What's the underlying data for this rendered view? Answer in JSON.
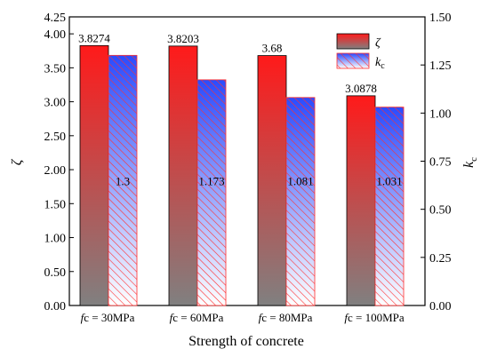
{
  "chart_data": {
    "type": "bar",
    "categories": [
      {
        "italic": "f",
        "rest": "c = 30MPa"
      },
      {
        "italic": "f",
        "rest": "c = 60MPa"
      },
      {
        "italic": "f",
        "rest": "c = 80MPa"
      },
      {
        "italic": "f",
        "rest": "c = 100MPa"
      }
    ],
    "xlabel": "Strength of concrete",
    "series": [
      {
        "name": "ζ",
        "axis": "left",
        "values": [
          3.8274,
          3.8203,
          3.68,
          3.0878
        ],
        "labels": [
          "3.8274",
          "3.8203",
          "3.68",
          "3.0878"
        ],
        "fill": "gradient-red-gray"
      },
      {
        "name": "k",
        "name_sub": "c",
        "axis": "right",
        "values": [
          1.3,
          1.173,
          1.081,
          1.031
        ],
        "labels": [
          "1.3",
          "1.173",
          "1.081",
          "1.031"
        ],
        "fill": "hatch-blue-red"
      }
    ],
    "left_axis": {
      "label": "ζ",
      "ylim": [
        0,
        4.25
      ],
      "ticks": [
        "0.00",
        "0.50",
        "1.00",
        "1.50",
        "2.00",
        "2.50",
        "3.00",
        "3.50",
        "4.00",
        "4.25"
      ],
      "tick_values": [
        0,
        0.5,
        1,
        1.5,
        2,
        2.5,
        3,
        3.5,
        4,
        4.25
      ]
    },
    "right_axis": {
      "label": "k",
      "label_sub": "c",
      "ylim": [
        0,
        1.5
      ],
      "ticks": [
        "0.00",
        "0.25",
        "0.50",
        "0.75",
        "1.00",
        "1.25",
        "1.50"
      ],
      "tick_values": [
        0,
        0.25,
        0.5,
        0.75,
        1,
        1.25,
        1.5
      ]
    },
    "legend": {
      "position": "top-right"
    },
    "colors": {
      "red": "#ff1a1a",
      "gray": "#808080",
      "blue": "#1f3fff",
      "hatch_red": "#ff3030"
    }
  }
}
